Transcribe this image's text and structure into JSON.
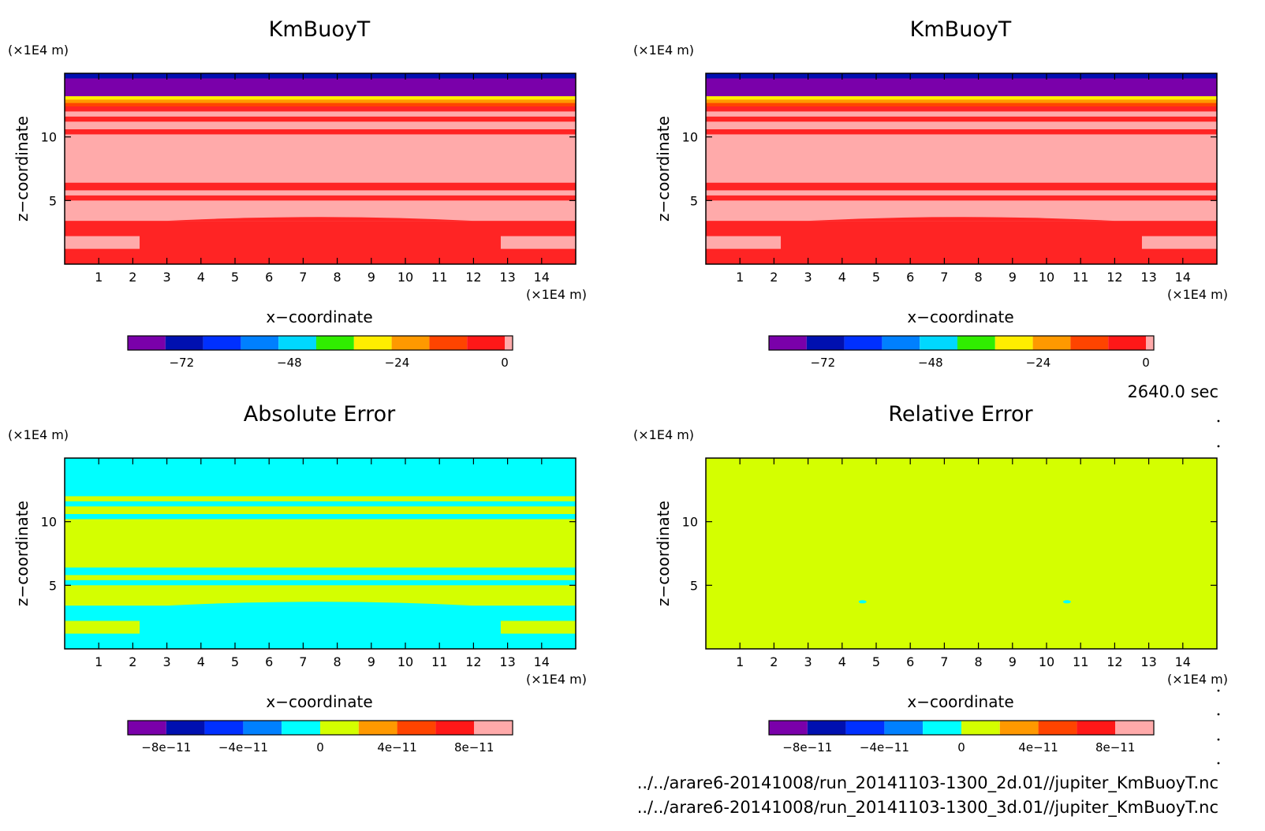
{
  "panels": [
    {
      "title": "KmBuoyT",
      "ylabel": "z−coordinate",
      "xlabel": "x−coordinate",
      "yunit": "(×1E4 m)",
      "xunit": "(×1E4 m)",
      "colorbar": {
        "colors": [
          "#7a00aa",
          "#0010b0",
          "#0030ff",
          "#0080ff",
          "#00d8ff",
          "#30ee00",
          "#ffee00",
          "#ff9900",
          "#ff4400",
          "#ff1818",
          "#ffaaaa"
        ],
        "tick_labels": [
          "−72",
          "−48",
          "−24",
          "0"
        ]
      }
    },
    {
      "title": "KmBuoyT",
      "ylabel": "z−coordinate",
      "xlabel": "x−coordinate",
      "yunit": "(×1E4 m)",
      "xunit": "(×1E4 m)",
      "colorbar": {
        "colors": [
          "#7a00aa",
          "#0010b0",
          "#0030ff",
          "#0080ff",
          "#00d8ff",
          "#30ee00",
          "#ffee00",
          "#ff9900",
          "#ff4400",
          "#ff1818",
          "#ffaaaa"
        ],
        "tick_labels": [
          "−72",
          "−48",
          "−24",
          "0"
        ]
      }
    },
    {
      "title": "Absolute Error",
      "ylabel": "z−coordinate",
      "xlabel": "x−coordinate",
      "yunit": "(×1E4 m)",
      "xunit": "(×1E4 m)",
      "colorbar": {
        "colors": [
          "#7a00aa",
          "#0010b0",
          "#0030ff",
          "#0080ff",
          "#00ffff",
          "#d4ff00",
          "#ff9900",
          "#ff4400",
          "#ff1818",
          "#ffaaaa"
        ],
        "tick_labels": [
          "−8e−11",
          "−4e−11",
          "0",
          "4e−11",
          "8e−11"
        ]
      }
    },
    {
      "title": "Relative Error",
      "ylabel": "z−coordinate",
      "xlabel": "x−coordinate",
      "yunit": "(×1E4 m)",
      "xunit": "(×1E4 m)",
      "colorbar": {
        "colors": [
          "#7a00aa",
          "#0010b0",
          "#0030ff",
          "#0080ff",
          "#00ffff",
          "#d4ff00",
          "#ff9900",
          "#ff4400",
          "#ff1818",
          "#ffaaaa"
        ],
        "tick_labels": [
          "−8e−11",
          "−4e−11",
          "0",
          "4e−11",
          "8e−11"
        ]
      }
    }
  ],
  "time_label": "2640.0 sec",
  "files": [
    "../../arare6-20141008/run_20141103-1300_2d.01//jupiter_KmBuoyT.nc",
    "../../arare6-20141008/run_20141103-1300_3d.01//jupiter_KmBuoyT.nc"
  ],
  "chart_data": [
    {
      "type": "heatmap",
      "title": "KmBuoyT",
      "xlabel": "x−coordinate (×1E4 m)",
      "ylabel": "z−coordinate (×1E4 m)",
      "xlim": [
        0,
        15
      ],
      "ylim": [
        0,
        15
      ],
      "xticks": [
        1,
        2,
        3,
        4,
        5,
        6,
        7,
        8,
        9,
        10,
        11,
        12,
        13,
        14
      ],
      "yticks": [
        5,
        10
      ],
      "colorbar_ticks": [
        -72,
        -48,
        -24,
        0
      ],
      "colors": {
        "top": "#0010b0",
        "upper": "#7a00aa",
        "transition": [
          "#ffee00",
          "#ff9900",
          "#ff4400"
        ],
        "band_a": "#ffaaaa",
        "band_b": "#ff2424"
      },
      "layers": [
        {
          "z": [
            14.6,
            15.0
          ],
          "color": "top"
        },
        {
          "z": [
            13.2,
            14.6
          ],
          "color": "upper"
        },
        {
          "z": [
            12.4,
            13.2
          ],
          "color": "transition"
        },
        {
          "z": [
            12.0,
            12.4
          ],
          "color": "band_b"
        },
        {
          "z": [
            11.6,
            12.0
          ],
          "color": "band_a"
        },
        {
          "z": [
            11.2,
            11.6
          ],
          "color": "band_b"
        },
        {
          "z": [
            10.6,
            11.2
          ],
          "color": "band_a"
        },
        {
          "z": [
            10.2,
            10.6
          ],
          "color": "band_b"
        },
        {
          "z": [
            6.4,
            10.2
          ],
          "color": "band_a"
        },
        {
          "z": [
            5.8,
            6.4
          ],
          "color": "band_b"
        },
        {
          "z": [
            5.4,
            5.8
          ],
          "color": "band_a"
        },
        {
          "z": [
            5.0,
            5.4
          ],
          "color": "band_b"
        },
        {
          "z": [
            3.4,
            5.0
          ],
          "color": "band_a"
        },
        {
          "z": [
            0.0,
            3.4
          ],
          "color": "band_b"
        }
      ]
    },
    {
      "type": "heatmap",
      "title": "KmBuoyT",
      "xlabel": "x−coordinate (×1E4 m)",
      "ylabel": "z−coordinate (×1E4 m)",
      "xlim": [
        0,
        15
      ],
      "ylim": [
        0,
        15
      ],
      "xticks": [
        1,
        2,
        3,
        4,
        5,
        6,
        7,
        8,
        9,
        10,
        11,
        12,
        13,
        14
      ],
      "yticks": [
        5,
        10
      ],
      "colorbar_ticks": [
        -72,
        -48,
        -24,
        0
      ],
      "colors": {
        "top": "#0010b0",
        "upper": "#7a00aa",
        "transition": [
          "#ffee00",
          "#ff9900",
          "#ff4400"
        ],
        "band_a": "#ffaaaa",
        "band_b": "#ff2424"
      },
      "layers": [
        {
          "z": [
            14.6,
            15.0
          ],
          "color": "top"
        },
        {
          "z": [
            13.2,
            14.6
          ],
          "color": "upper"
        },
        {
          "z": [
            12.4,
            13.2
          ],
          "color": "transition"
        },
        {
          "z": [
            12.0,
            12.4
          ],
          "color": "band_b"
        },
        {
          "z": [
            11.6,
            12.0
          ],
          "color": "band_a"
        },
        {
          "z": [
            11.2,
            11.6
          ],
          "color": "band_b"
        },
        {
          "z": [
            10.6,
            11.2
          ],
          "color": "band_a"
        },
        {
          "z": [
            10.2,
            10.6
          ],
          "color": "band_b"
        },
        {
          "z": [
            6.4,
            10.2
          ],
          "color": "band_a"
        },
        {
          "z": [
            5.8,
            6.4
          ],
          "color": "band_b"
        },
        {
          "z": [
            5.4,
            5.8
          ],
          "color": "band_a"
        },
        {
          "z": [
            5.0,
            5.4
          ],
          "color": "band_b"
        },
        {
          "z": [
            3.4,
            5.0
          ],
          "color": "band_a"
        },
        {
          "z": [
            0.0,
            3.4
          ],
          "color": "band_b"
        }
      ]
    },
    {
      "type": "heatmap",
      "title": "Absolute Error",
      "xlabel": "x−coordinate (×1E4 m)",
      "ylabel": "z−coordinate (×1E4 m)",
      "xlim": [
        0,
        15
      ],
      "ylim": [
        0,
        15
      ],
      "xticks": [
        1,
        2,
        3,
        4,
        5,
        6,
        7,
        8,
        9,
        10,
        11,
        12,
        13,
        14
      ],
      "yticks": [
        5,
        10
      ],
      "colorbar_ticks": [
        "-8e-11",
        "-4e-11",
        "0",
        "4e-11",
        "8e-11"
      ],
      "colors": {
        "band_a": "#00ffff",
        "band_b": "#d4ff00"
      },
      "layers": [
        {
          "z": [
            12.0,
            15.0
          ],
          "color": "band_a"
        },
        {
          "z": [
            11.6,
            12.0
          ],
          "color": "band_b"
        },
        {
          "z": [
            11.2,
            11.6
          ],
          "color": "band_a"
        },
        {
          "z": [
            10.6,
            11.2
          ],
          "color": "band_b"
        },
        {
          "z": [
            10.2,
            10.6
          ],
          "color": "band_a"
        },
        {
          "z": [
            6.4,
            10.2
          ],
          "color": "band_b"
        },
        {
          "z": [
            5.8,
            6.4
          ],
          "color": "band_a"
        },
        {
          "z": [
            5.4,
            5.8
          ],
          "color": "band_b"
        },
        {
          "z": [
            5.0,
            5.4
          ],
          "color": "band_a"
        },
        {
          "z": [
            3.4,
            5.0
          ],
          "color": "band_b"
        },
        {
          "z": [
            0.0,
            3.4
          ],
          "color": "band_a"
        }
      ]
    },
    {
      "type": "heatmap",
      "title": "Relative Error",
      "xlabel": "x−coordinate (×1E4 m)",
      "ylabel": "z−coordinate (×1E4 m)",
      "xlim": [
        0,
        15
      ],
      "ylim": [
        0,
        15
      ],
      "xticks": [
        1,
        2,
        3,
        4,
        5,
        6,
        7,
        8,
        9,
        10,
        11,
        12,
        13,
        14
      ],
      "yticks": [
        5,
        10
      ],
      "colorbar_ticks": [
        "-8e-11",
        "-4e-11",
        "0",
        "4e-11",
        "8e-11"
      ],
      "colors": {
        "band_b": "#d4ff00",
        "speck": "#00ffff"
      },
      "layers": [
        {
          "z": [
            0.0,
            15.0
          ],
          "color": "band_b"
        }
      ],
      "specks": [
        {
          "x": 4.6,
          "z": 3.7
        },
        {
          "x": 10.6,
          "z": 3.7
        }
      ]
    }
  ]
}
